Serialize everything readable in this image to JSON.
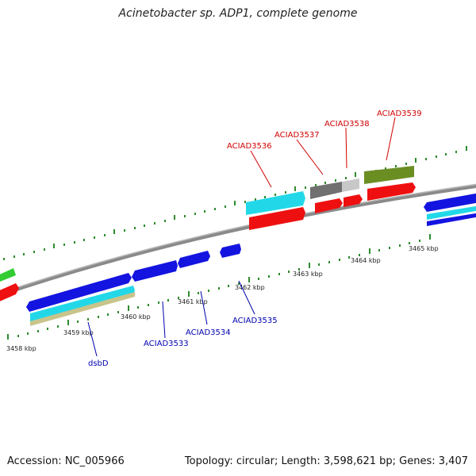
{
  "title": "Acinetobacter sp. ADP1, complete genome",
  "footer": {
    "accession": "Accession: NC_005966",
    "stats": "Topology: circular; Length: 3,598,621 bp; Genes: 3,407"
  },
  "kbp_labels": [
    "3458 kbp",
    "3459 kbp",
    "3460 kbp",
    "3461 kbp",
    "3462 kbp",
    "3463 kbp",
    "3464 kbp",
    "3465 kbp"
  ],
  "gene_labels_top": [
    "ACIAD3536",
    "ACIAD3537",
    "ACIAD3538",
    "ACIAD3539"
  ],
  "gene_labels_bottom": [
    "dsbD",
    "ACIAD3533",
    "ACIAD3534",
    "ACIAD3535"
  ],
  "colors": {
    "backbone": "#808080",
    "ticks": "#2e8b2e",
    "label_top": "#d00000",
    "label_bottom": "#0000b0",
    "gene_blue": "#1010e0",
    "gene_red": "#ee1010",
    "gene_cyan": "#22d8e8",
    "gene_olive": "#6b8e23",
    "gene_gray": "#707070",
    "gene_lightgray": "#c8c8c8",
    "gene_tan": "#c8c48a",
    "gene_green": "#33cc33"
  }
}
